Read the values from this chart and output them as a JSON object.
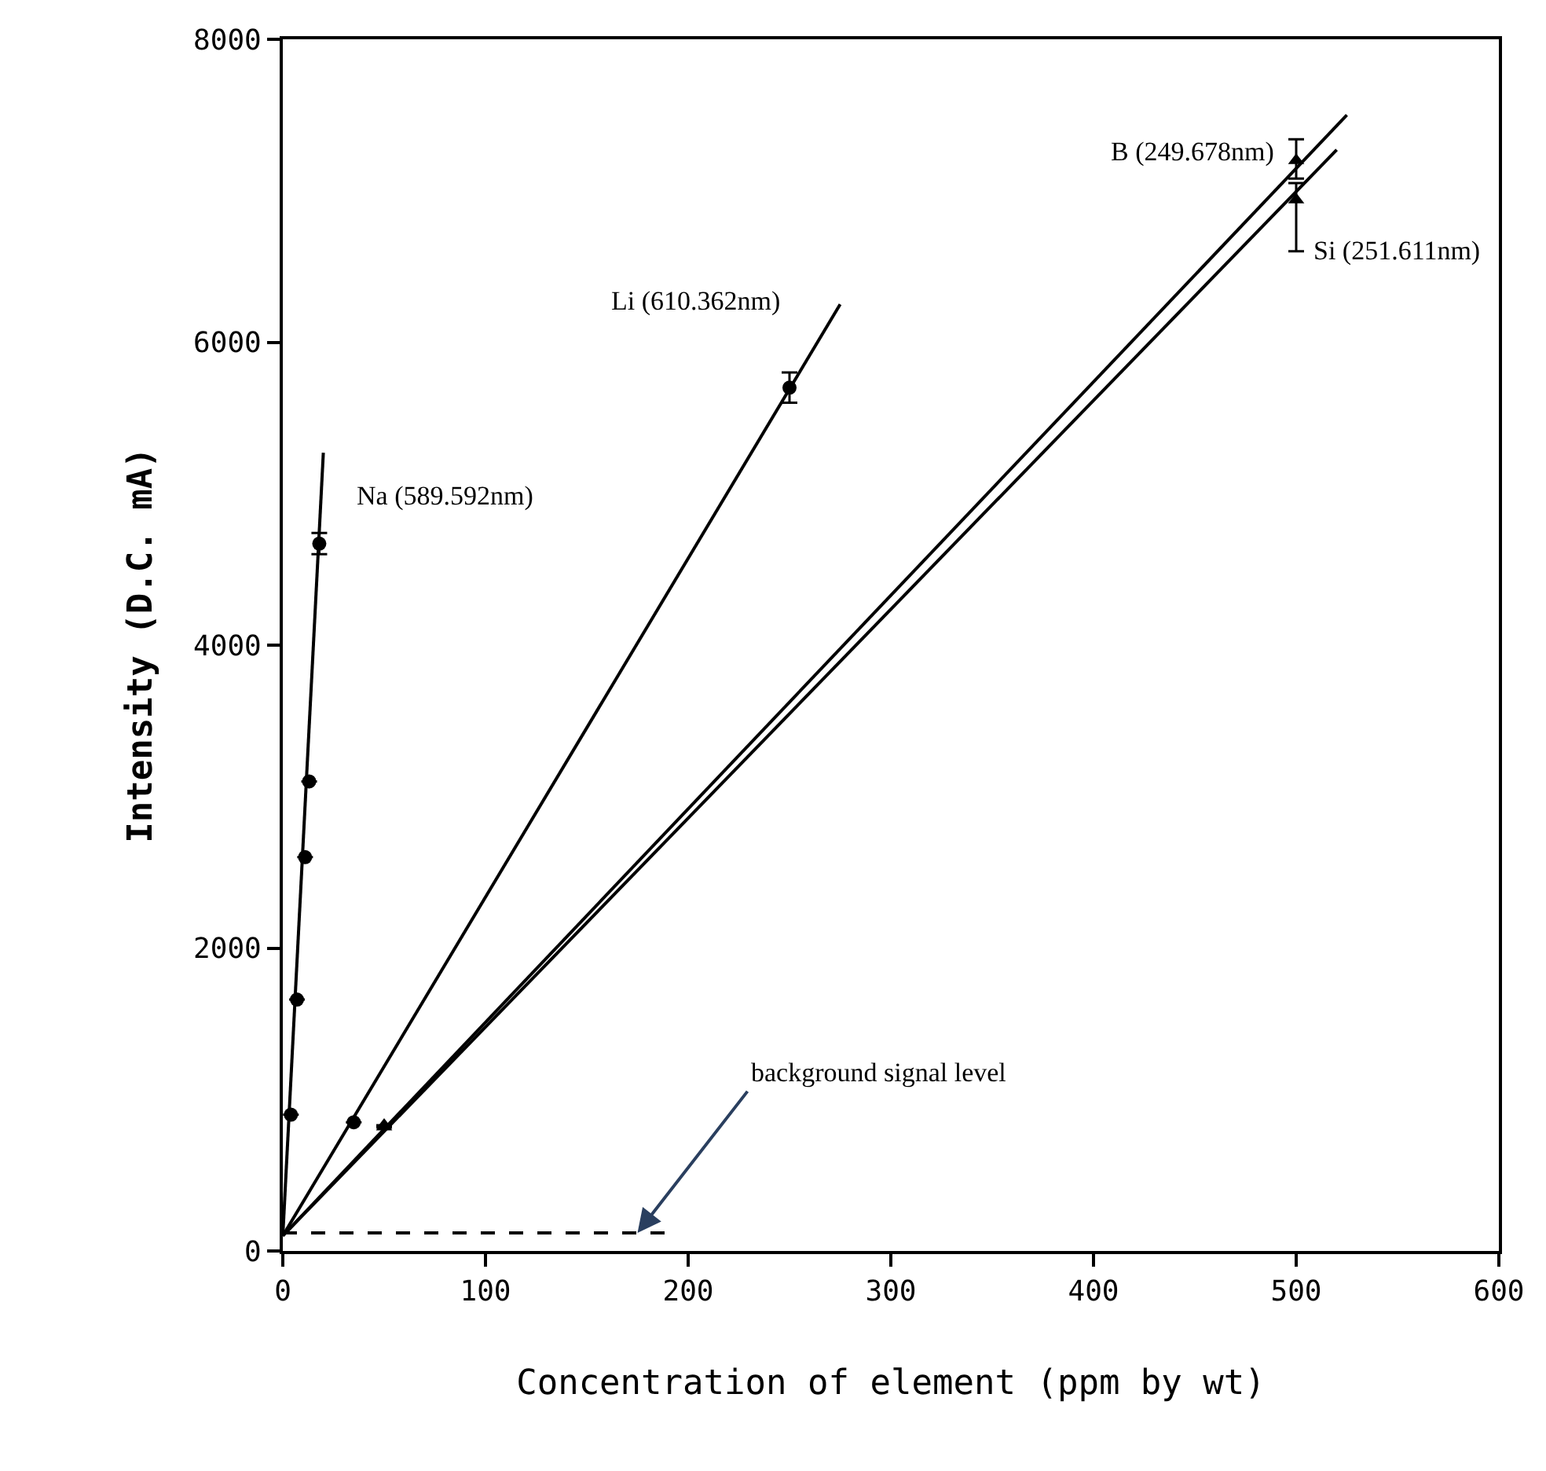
{
  "chart_data": {
    "type": "scatter",
    "xlabel": "Concentration of element (ppm by wt)",
    "ylabel": "Intensity (D.C. mA)",
    "xlim": [
      0,
      600
    ],
    "ylim": [
      0,
      8000
    ],
    "xticks": [
      0,
      100,
      200,
      300,
      400,
      500,
      600
    ],
    "yticks": [
      0,
      2000,
      4000,
      6000,
      8000
    ],
    "series": [
      {
        "name": "Na (589.592nm)",
        "color": "#000000",
        "marker": "circle",
        "x": [
          4,
          7,
          11,
          13,
          18
        ],
        "values": [
          900,
          1660,
          2600,
          3100,
          4670
        ],
        "errors": [
          null,
          null,
          null,
          null,
          70
        ]
      },
      {
        "name": "Li (610.362nm)",
        "color": "#000000",
        "marker": "circle",
        "x": [
          35,
          250
        ],
        "values": [
          850,
          5700
        ],
        "errors": [
          null,
          100
        ]
      },
      {
        "name": "B (249.678nm)",
        "color": "#000000",
        "marker": "triangle",
        "x": [
          50,
          500
        ],
        "values": [
          830,
          7200
        ],
        "errors": [
          null,
          [
            7080,
            7340
          ]
        ]
      },
      {
        "name": "Si (251.611nm)",
        "color": "#000000",
        "marker": "triangle",
        "x": [
          50,
          500
        ],
        "values": [
          820,
          6940
        ],
        "errors": [
          null,
          [
            6600,
            7050
          ]
        ]
      },
      {
        "type": "line",
        "color": "#000000",
        "line_style": "solid",
        "x": [
          0,
          20
        ],
        "values": [
          100,
          5270
        ]
      },
      {
        "type": "line",
        "color": "#000000",
        "line_style": "solid",
        "x": [
          0,
          275
        ],
        "values": [
          100,
          6250
        ]
      },
      {
        "type": "line",
        "color": "#000000",
        "line_style": "solid",
        "x": [
          0,
          525
        ],
        "values": [
          100,
          7500
        ]
      },
      {
        "type": "line",
        "color": "#000000",
        "line_style": "solid",
        "x": [
          0,
          520
        ],
        "values": [
          100,
          7270
        ]
      },
      {
        "type": "line",
        "color": "#000000",
        "line_style": "dashed",
        "x": [
          0,
          190
        ],
        "values": [
          120,
          120
        ]
      }
    ],
    "annotations": [
      {
        "text": "background signal level",
        "x": 175,
        "y": 120
      }
    ]
  }
}
